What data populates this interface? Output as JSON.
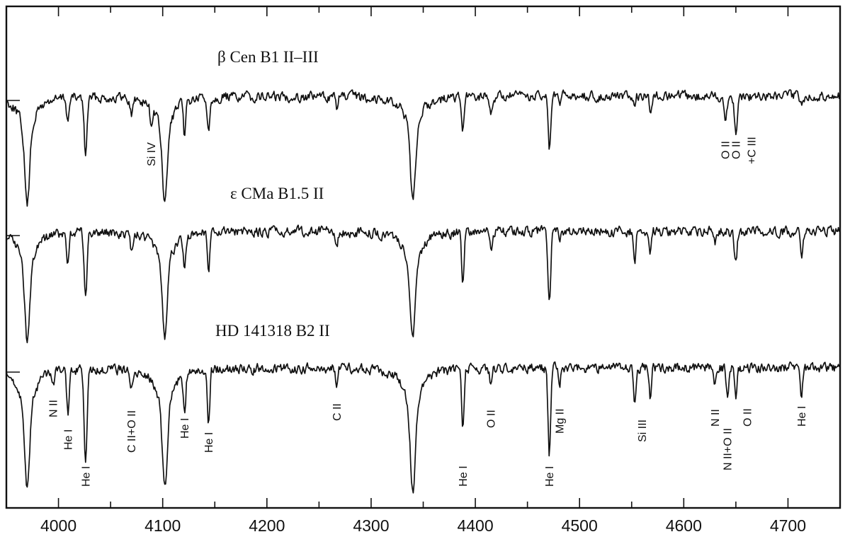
{
  "chart_data": {
    "type": "line",
    "title": "",
    "xlabel": "",
    "ylabel": "",
    "xlim": [
      3950,
      4750
    ],
    "x_ticks_major": [
      4000,
      4100,
      4200,
      4300,
      4400,
      4500,
      4600,
      4700
    ],
    "x_tick_labels": [
      "4000",
      "4100",
      "4200",
      "4300",
      "4400",
      "4500",
      "4600",
      "4700"
    ],
    "minor_tick_step": 50,
    "grid": false,
    "legend": "none",
    "series": [
      {
        "name": "β Cen  B1 II–III",
        "lines": [
          {
            "wl": 3970,
            "depth": 1.0,
            "width": 3.2
          },
          {
            "wl": 4009,
            "depth": 0.22,
            "width": 1.6
          },
          {
            "wl": 4026,
            "depth": 0.52,
            "width": 2.0
          },
          {
            "wl": 4070,
            "depth": 0.15,
            "width": 1.8
          },
          {
            "wl": 4089,
            "depth": 0.18,
            "width": 1.5
          },
          {
            "wl": 4102,
            "depth": 1.0,
            "width": 3.2
          },
          {
            "wl": 4121,
            "depth": 0.32,
            "width": 1.6
          },
          {
            "wl": 4144,
            "depth": 0.32,
            "width": 1.7
          },
          {
            "wl": 4267,
            "depth": 0.1,
            "width": 1.6
          },
          {
            "wl": 4340,
            "depth": 0.98,
            "width": 3.2
          },
          {
            "wl": 4388,
            "depth": 0.33,
            "width": 1.7
          },
          {
            "wl": 4415,
            "depth": 0.17,
            "width": 1.6
          },
          {
            "wl": 4471,
            "depth": 0.5,
            "width": 1.8
          },
          {
            "wl": 4481,
            "depth": 0.08,
            "width": 1.4
          },
          {
            "wl": 4553,
            "depth": 0.15,
            "width": 1.4
          },
          {
            "wl": 4568,
            "depth": 0.12,
            "width": 1.4
          },
          {
            "wl": 4640,
            "depth": 0.22,
            "width": 2.0
          },
          {
            "wl": 4650,
            "depth": 0.35,
            "width": 1.8
          },
          {
            "wl": 4713,
            "depth": 0.08,
            "width": 1.4
          }
        ]
      },
      {
        "name": "ε CMa  B1.5 II",
        "lines": [
          {
            "wl": 3970,
            "depth": 1.0,
            "width": 3.2
          },
          {
            "wl": 4009,
            "depth": 0.27,
            "width": 1.6
          },
          {
            "wl": 4026,
            "depth": 0.57,
            "width": 2.0
          },
          {
            "wl": 4070,
            "depth": 0.15,
            "width": 1.8
          },
          {
            "wl": 4102,
            "depth": 1.0,
            "width": 3.2
          },
          {
            "wl": 4121,
            "depth": 0.3,
            "width": 1.6
          },
          {
            "wl": 4144,
            "depth": 0.35,
            "width": 1.7
          },
          {
            "wl": 4267,
            "depth": 0.1,
            "width": 1.6
          },
          {
            "wl": 4340,
            "depth": 1.0,
            "width": 3.2
          },
          {
            "wl": 4388,
            "depth": 0.48,
            "width": 1.7
          },
          {
            "wl": 4415,
            "depth": 0.17,
            "width": 1.6
          },
          {
            "wl": 4471,
            "depth": 0.65,
            "width": 1.8
          },
          {
            "wl": 4481,
            "depth": 0.09,
            "width": 1.4
          },
          {
            "wl": 4553,
            "depth": 0.25,
            "width": 1.4
          },
          {
            "wl": 4568,
            "depth": 0.2,
            "width": 1.4
          },
          {
            "wl": 4630,
            "depth": 0.12,
            "width": 1.4
          },
          {
            "wl": 4650,
            "depth": 0.3,
            "width": 1.8
          },
          {
            "wl": 4713,
            "depth": 0.23,
            "width": 1.5
          }
        ]
      },
      {
        "name": "HD 141318  B2 II",
        "lines": [
          {
            "wl": 3970,
            "depth": 1.0,
            "width": 3.2
          },
          {
            "wl": 3995,
            "depth": 0.1,
            "width": 1.4
          },
          {
            "wl": 4009,
            "depth": 0.35,
            "width": 1.6
          },
          {
            "wl": 4026,
            "depth": 0.72,
            "width": 2.0
          },
          {
            "wl": 4070,
            "depth": 0.15,
            "width": 1.8
          },
          {
            "wl": 4102,
            "depth": 1.0,
            "width": 3.2
          },
          {
            "wl": 4121,
            "depth": 0.33,
            "width": 1.6
          },
          {
            "wl": 4144,
            "depth": 0.47,
            "width": 1.7
          },
          {
            "wl": 4267,
            "depth": 0.13,
            "width": 1.6
          },
          {
            "wl": 4340,
            "depth": 1.0,
            "width": 3.2
          },
          {
            "wl": 4388,
            "depth": 0.53,
            "width": 1.7
          },
          {
            "wl": 4415,
            "depth": 0.14,
            "width": 1.6
          },
          {
            "wl": 4471,
            "depth": 0.7,
            "width": 1.8
          },
          {
            "wl": 4481,
            "depth": 0.12,
            "width": 1.4
          },
          {
            "wl": 4553,
            "depth": 0.3,
            "width": 1.4
          },
          {
            "wl": 4568,
            "depth": 0.28,
            "width": 1.4
          },
          {
            "wl": 4630,
            "depth": 0.15,
            "width": 1.4
          },
          {
            "wl": 4642,
            "depth": 0.2,
            "width": 1.8
          },
          {
            "wl": 4650,
            "depth": 0.23,
            "width": 1.8
          },
          {
            "wl": 4713,
            "depth": 0.27,
            "width": 1.5
          }
        ]
      }
    ],
    "annotations": [
      {
        "series": 0,
        "text": "Si IV",
        "wl": 4089
      },
      {
        "series": 0,
        "text": "O II",
        "wl": 4640
      },
      {
        "series": 0,
        "text": "O II",
        "wl": 4650
      },
      {
        "series": 0,
        "text": "+C III",
        "wl": 4665
      },
      {
        "series": 2,
        "text": "N II",
        "wl": 3995
      },
      {
        "series": 2,
        "text": "He I",
        "wl": 4009
      },
      {
        "series": 2,
        "text": "He I",
        "wl": 4026
      },
      {
        "series": 2,
        "text": "C II+O II",
        "wl": 4070
      },
      {
        "series": 2,
        "text": "He I",
        "wl": 4121
      },
      {
        "series": 2,
        "text": "He I",
        "wl": 4144
      },
      {
        "series": 2,
        "text": "C II",
        "wl": 4267
      },
      {
        "series": 2,
        "text": "He I",
        "wl": 4388
      },
      {
        "series": 2,
        "text": "O II",
        "wl": 4415
      },
      {
        "series": 2,
        "text": "He I",
        "wl": 4471
      },
      {
        "series": 2,
        "text": "Mg II",
        "wl": 4481
      },
      {
        "series": 2,
        "text": "Si III",
        "wl": 4560
      },
      {
        "series": 2,
        "text": "N II",
        "wl": 4630
      },
      {
        "series": 2,
        "text": "N II+O II",
        "wl": 4642
      },
      {
        "series": 2,
        "text": "O II",
        "wl": 4661
      },
      {
        "series": 2,
        "text": "He I",
        "wl": 4713
      }
    ]
  }
}
